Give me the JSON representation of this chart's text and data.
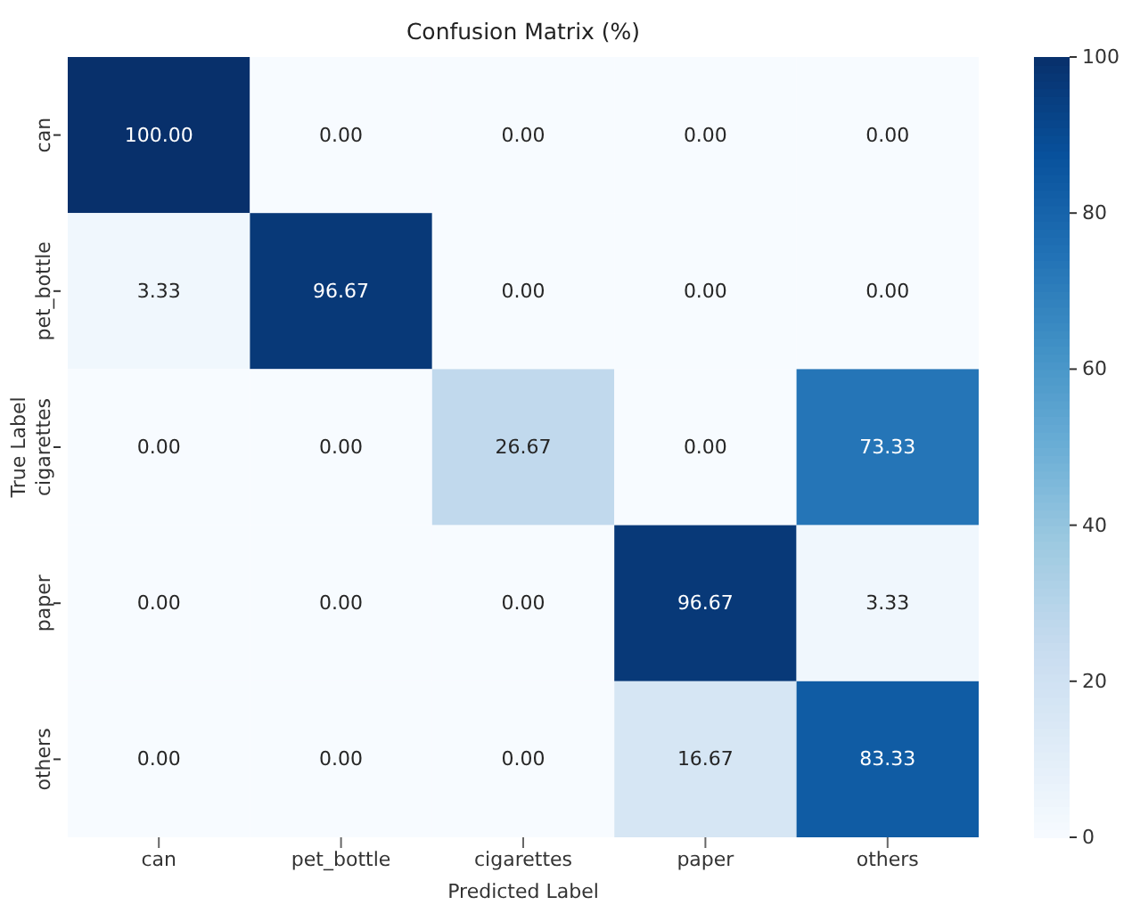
{
  "chart_data": {
    "type": "heatmap",
    "title": "Confusion Matrix (%)",
    "xlabel": "Predicted Label",
    "ylabel": "True Label",
    "categories": [
      "can",
      "pet_bottle",
      "cigarettes",
      "paper",
      "others"
    ],
    "y_categories": [
      "can",
      "pet_bottle",
      "cigarettes",
      "paper",
      "others"
    ],
    "cells": [
      [
        100,
        0,
        0,
        0,
        0
      ],
      [
        3.33,
        96.67,
        0,
        0,
        0
      ],
      [
        0,
        0,
        26.67,
        0,
        73.33
      ],
      [
        0,
        0,
        0,
        96.67,
        3.33
      ],
      [
        0,
        0,
        0,
        16.67,
        83.33
      ]
    ],
    "cell_labels": [
      [
        "100.00",
        "0.00",
        "0.00",
        "0.00",
        "0.00"
      ],
      [
        "3.33",
        "96.67",
        "0.00",
        "0.00",
        "0.00"
      ],
      [
        "0.00",
        "0.00",
        "26.67",
        "0.00",
        "73.33"
      ],
      [
        "0.00",
        "0.00",
        "0.00",
        "96.67",
        "3.33"
      ],
      [
        "0.00",
        "0.00",
        "0.00",
        "16.67",
        "83.33"
      ]
    ],
    "clim": [
      0,
      100
    ],
    "cticks": [
      0,
      20,
      40,
      60,
      80,
      100
    ]
  }
}
